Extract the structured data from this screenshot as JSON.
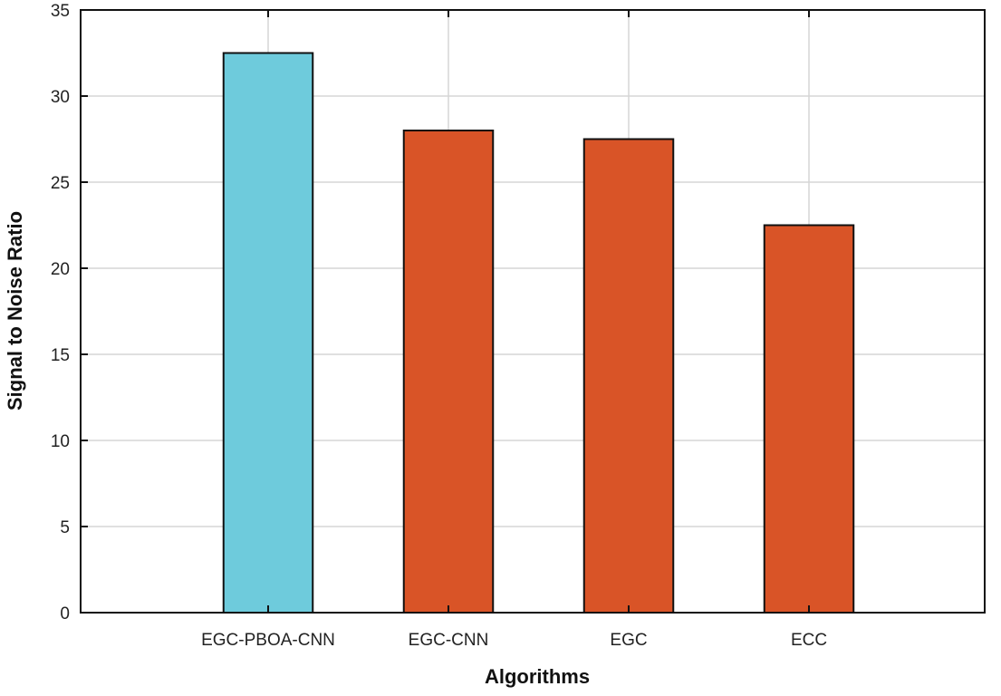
{
  "chart_data": {
    "type": "bar",
    "title": "",
    "xlabel": "Algorithms",
    "ylabel": "Signal to Noise Ratio",
    "categories": [
      "EGC-PBOA-CNN",
      "EGC-CNN",
      "EGC",
      "ECC"
    ],
    "values": [
      32.5,
      28.0,
      27.5,
      22.5
    ],
    "colors": [
      "#6ecbdc",
      "#d95427",
      "#d95427",
      "#d95427"
    ],
    "ylim": [
      0,
      35
    ],
    "yticks": [
      0,
      5,
      10,
      15,
      20,
      25,
      30,
      35
    ],
    "xlim": [
      0,
      5
    ],
    "grid": true,
    "legend": "none"
  }
}
